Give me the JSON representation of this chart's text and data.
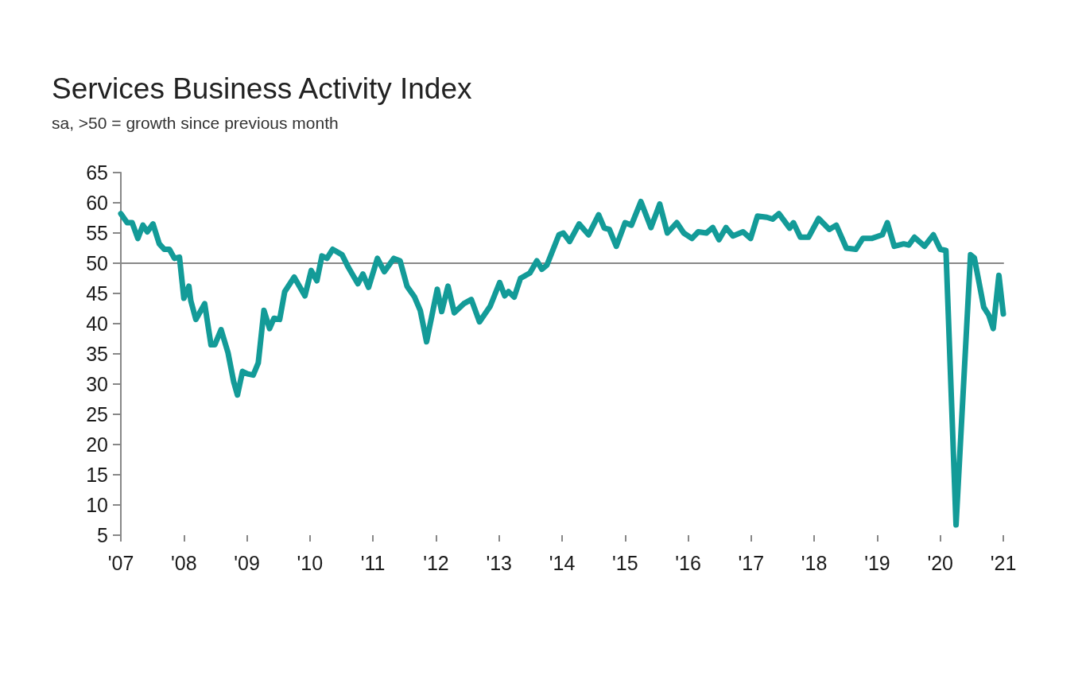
{
  "chart_data": {
    "type": "line",
    "title": "Services Business Activity Index",
    "subtitle": "sa, >50 = growth since previous month",
    "x": [
      2007.0,
      2007.1,
      2007.18,
      2007.27,
      2007.35,
      2007.42,
      2007.51,
      2007.61,
      2007.69,
      2007.77,
      2007.85,
      2007.93,
      2008.0,
      2008.08,
      2008.11,
      2008.19,
      2008.33,
      2008.43,
      2008.49,
      2008.59,
      2008.7,
      2008.79,
      2008.85,
      2008.93,
      2009.01,
      2009.1,
      2009.18,
      2009.27,
      2009.36,
      2009.43,
      2009.52,
      2009.6,
      2009.75,
      2009.92,
      2010.02,
      2010.11,
      2010.19,
      2010.27,
      2010.36,
      2010.51,
      2010.61,
      2010.76,
      2010.84,
      2010.93,
      2011.07,
      2011.18,
      2011.33,
      2011.43,
      2011.54,
      2011.66,
      2011.75,
      2011.85,
      2012.02,
      2012.09,
      2012.19,
      2012.29,
      2012.44,
      2012.56,
      2012.69,
      2012.86,
      2013.01,
      2013.09,
      2013.15,
      2013.24,
      2013.34,
      2013.49,
      2013.6,
      2013.68,
      2013.76,
      2013.95,
      2014.02,
      2014.12,
      2014.27,
      2014.42,
      2014.58,
      2014.67,
      2014.75,
      2014.86,
      2015.0,
      2015.1,
      2015.25,
      2015.41,
      2015.55,
      2015.67,
      2015.82,
      2015.93,
      2016.06,
      2016.16,
      2016.29,
      2016.39,
      2016.49,
      2016.6,
      2016.71,
      2016.87,
      2016.99,
      2017.1,
      2017.25,
      2017.34,
      2017.44,
      2017.61,
      2017.67,
      2017.78,
      2017.91,
      2018.07,
      2018.24,
      2018.35,
      2018.51,
      2018.66,
      2018.77,
      2018.91,
      2019.08,
      2019.16,
      2019.27,
      2019.42,
      2019.5,
      2019.59,
      2019.75,
      2019.89,
      2020.0,
      2020.09,
      2020.25,
      2020.48,
      2020.54,
      2020.69,
      2020.77,
      2020.84,
      2020.93,
      2021.0
    ],
    "series": [
      {
        "color": "#139b98",
        "values": [
          58.2,
          56.7,
          56.7,
          54.1,
          56.3,
          55.2,
          56.5,
          53.2,
          52.3,
          52.3,
          50.8,
          51.0,
          44.2,
          46.2,
          43.8,
          40.7,
          43.3,
          36.5,
          36.5,
          39.0,
          35.2,
          30.4,
          28.2,
          32.1,
          31.7,
          31.5,
          33.5,
          42.2,
          39.2,
          40.9,
          40.7,
          45.3,
          47.7,
          44.6,
          48.8,
          47.1,
          51.2,
          50.8,
          52.3,
          51.4,
          49.3,
          46.6,
          48.2,
          46.0,
          50.8,
          48.6,
          50.8,
          50.4,
          46.2,
          44.4,
          42.2,
          37.0,
          45.7,
          42.0,
          46.2,
          41.8,
          43.3,
          44.0,
          40.3,
          42.9,
          46.8,
          44.6,
          45.3,
          44.4,
          47.5,
          48.4,
          50.4,
          49.0,
          49.7,
          54.7,
          55.0,
          53.6,
          56.5,
          54.7,
          58.0,
          55.8,
          55.6,
          52.8,
          56.7,
          56.3,
          60.2,
          55.9,
          59.8,
          55.0,
          56.7,
          55.0,
          54.1,
          55.2,
          55.0,
          55.9,
          53.9,
          55.9,
          54.5,
          55.2,
          54.1,
          57.8,
          57.6,
          57.3,
          58.2,
          55.8,
          56.7,
          54.3,
          54.3,
          57.4,
          55.6,
          56.3,
          52.5,
          52.3,
          54.1,
          54.1,
          54.7,
          56.7,
          52.8,
          53.2,
          53.0,
          54.3,
          52.8,
          54.7,
          52.3,
          52.1,
          6.7,
          51.4,
          50.9,
          42.7,
          41.4,
          39.2,
          48.0,
          41.6
        ]
      }
    ],
    "xlim": [
      2007,
      2021
    ],
    "xticks": [
      {
        "value": 2007,
        "label": "'07"
      },
      {
        "value": 2008,
        "label": "'08"
      },
      {
        "value": 2009,
        "label": "'09"
      },
      {
        "value": 2010,
        "label": "'10"
      },
      {
        "value": 2011,
        "label": "'11"
      },
      {
        "value": 2012,
        "label": "'12"
      },
      {
        "value": 2013,
        "label": "'13"
      },
      {
        "value": 2014,
        "label": "'14"
      },
      {
        "value": 2015,
        "label": "'15"
      },
      {
        "value": 2016,
        "label": "'16"
      },
      {
        "value": 2017,
        "label": "'17"
      },
      {
        "value": 2018,
        "label": "'18"
      },
      {
        "value": 2019,
        "label": "'19"
      },
      {
        "value": 2020,
        "label": "'20"
      },
      {
        "value": 2021,
        "label": "'21"
      }
    ],
    "ylim": [
      5,
      65
    ],
    "yticks": [
      5,
      10,
      15,
      20,
      25,
      30,
      35,
      40,
      45,
      50,
      55,
      60,
      65
    ],
    "ref_lines": [
      {
        "axis": "y",
        "value": 50,
        "color": "#888888"
      }
    ],
    "grid": false,
    "marker": "none",
    "line_style": "solid"
  }
}
